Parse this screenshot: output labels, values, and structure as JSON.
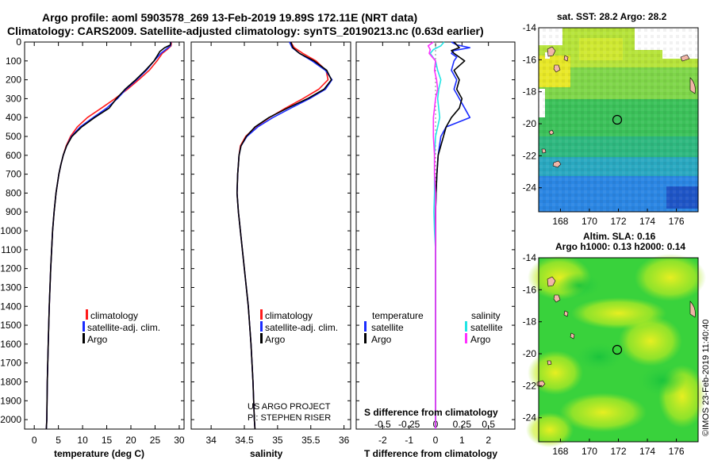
{
  "header": {
    "line1": "Argo profile: aoml 5903578_269 13-Feb-2019 19.89S 172.11E (NRT data)",
    "line2": "Climatology: CARS2009. Satellite-adjusted climatology: synTS_20190213.nc (0.63d earlier)"
  },
  "side_labels": {
    "sst": "sat. SST: 28.2 Argo: 28.2",
    "sla1": "Altim. SLA: 0.16",
    "sla2": "Argo h1000: 0.13 h2000: 0.14",
    "imos": "©IMOS 23-Feb-2019 11:40:40"
  },
  "depth_axis": {
    "ticks": [
      "0",
      "100",
      "200",
      "300",
      "400",
      "500",
      "600",
      "700",
      "800",
      "900",
      "1000",
      "1100",
      "1200",
      "1300",
      "1400",
      "1500",
      "1600",
      "1700",
      "1800",
      "1900",
      "2000"
    ],
    "range": [
      0,
      2050
    ]
  },
  "colors": {
    "climatology": "#ff1a1a",
    "satellite": "#1a2cff",
    "argo": "#000000",
    "satellite_s": "#22e5e5",
    "argo_s": "#ff30ff"
  },
  "chart_data": [
    {
      "type": "line",
      "title": "",
      "xlabel": "temperature (deg C)",
      "xlim": [
        -2,
        31
      ],
      "xticks": [
        {
          "v": 0,
          "label": "0"
        },
        {
          "v": 5,
          "label": "5"
        },
        {
          "v": 10,
          "label": "10"
        },
        {
          "v": 15,
          "label": "15"
        },
        {
          "v": 20,
          "label": "20"
        },
        {
          "v": 25,
          "label": "25"
        },
        {
          "v": 30,
          "label": "30"
        }
      ],
      "legend": [
        "climatology",
        "satellite-adj. clim.",
        "Argo"
      ],
      "series": [
        {
          "name": "climatology",
          "color": "#ff1a1a",
          "depth": [
            0,
            20,
            40,
            60,
            100,
            150,
            200,
            250,
            300,
            350,
            400,
            450,
            500,
            550,
            600,
            650,
            700,
            800,
            900,
            1000,
            1200,
            1400,
            1600,
            1800,
            2000,
            2050
          ],
          "values": [
            28.4,
            28.3,
            27.5,
            26.5,
            25.4,
            23.8,
            21.6,
            19.3,
            16.7,
            13.9,
            11.0,
            8.9,
            7.5,
            6.6,
            6.0,
            5.5,
            5.1,
            4.5,
            4.1,
            3.8,
            3.4,
            3.1,
            2.9,
            2.7,
            2.6,
            2.5
          ]
        },
        {
          "name": "satellite-adj. clim.",
          "color": "#1a2cff",
          "depth": [
            0,
            20,
            40,
            60,
            100,
            150,
            200,
            250,
            300,
            350,
            400,
            450,
            500,
            550,
            600,
            650,
            700,
            800,
            900,
            1000,
            1200,
            1400,
            1600,
            1800,
            2000,
            2050
          ],
          "values": [
            28.3,
            28.2,
            27.2,
            26.2,
            24.8,
            23.2,
            21.2,
            19.0,
            17.2,
            15.0,
            12.2,
            9.5,
            7.7,
            6.7,
            6.0,
            5.5,
            5.1,
            4.5,
            4.1,
            3.8,
            3.4,
            3.1,
            2.9,
            2.7,
            2.6,
            2.5
          ]
        },
        {
          "name": "Argo",
          "color": "#000000",
          "depth": [
            0,
            15,
            30,
            50,
            100,
            150,
            200,
            250,
            300,
            350,
            400,
            450,
            500,
            550,
            600,
            650,
            700,
            800,
            900,
            1000,
            1200,
            1400,
            1600,
            1800,
            2000,
            2050
          ],
          "values": [
            28.2,
            28.2,
            27.0,
            26.0,
            24.8,
            23.0,
            21.0,
            18.8,
            17.0,
            15.5,
            12.5,
            9.8,
            7.8,
            6.7,
            6.0,
            5.5,
            5.1,
            4.5,
            4.1,
            3.8,
            3.4,
            3.1,
            2.9,
            2.7,
            2.6,
            2.5
          ]
        }
      ]
    },
    {
      "type": "line",
      "xlabel": "salinity",
      "xlim": [
        33.7,
        36.1
      ],
      "xticks": [
        {
          "v": 34,
          "label": "34"
        },
        {
          "v": 34.5,
          "label": "34.5"
        },
        {
          "v": 35,
          "label": "35"
        },
        {
          "v": 35.5,
          "label": "35.5"
        },
        {
          "v": 36,
          "label": "36"
        }
      ],
      "legend": [
        "climatology",
        "satellite-adj. clim.",
        "Argo"
      ],
      "credit": [
        "US ARGO PROJECT",
        "PI: STEPHEN RISER"
      ],
      "series": [
        {
          "name": "climatology",
          "color": "#ff1a1a",
          "depth": [
            0,
            30,
            60,
            100,
            150,
            200,
            250,
            300,
            350,
            400,
            450,
            500,
            550,
            600,
            650,
            700,
            800,
            900,
            1000,
            1200,
            1400,
            1600,
            1800,
            2000,
            2050
          ],
          "values": [
            35.2,
            35.25,
            35.38,
            35.58,
            35.73,
            35.76,
            35.62,
            35.38,
            35.12,
            34.88,
            34.67,
            34.52,
            34.44,
            34.42,
            34.41,
            34.4,
            34.39,
            34.41,
            34.44,
            34.5,
            34.56,
            34.6,
            34.63,
            34.65,
            34.66
          ]
        },
        {
          "name": "satellite-adj. clim.",
          "color": "#1a2cff",
          "depth": [
            0,
            30,
            60,
            100,
            150,
            200,
            250,
            300,
            350,
            400,
            450,
            500,
            550,
            600,
            650,
            700,
            800,
            900,
            1000,
            1200,
            1400,
            1600,
            1800,
            2000,
            2050
          ],
          "values": [
            35.18,
            35.22,
            35.33,
            35.52,
            35.72,
            35.82,
            35.72,
            35.48,
            35.2,
            34.93,
            34.7,
            34.54,
            34.45,
            34.42,
            34.41,
            34.4,
            34.39,
            34.41,
            34.44,
            34.5,
            34.56,
            34.6,
            34.63,
            34.65,
            34.66
          ]
        },
        {
          "name": "Argo",
          "color": "#000000",
          "depth": [
            0,
            30,
            60,
            100,
            150,
            200,
            250,
            300,
            350,
            400,
            450,
            500,
            550,
            600,
            650,
            700,
            800,
            900,
            1000,
            1200,
            1400,
            1600,
            1800,
            2000,
            2050
          ],
          "values": [
            35.2,
            35.23,
            35.33,
            35.55,
            35.74,
            35.81,
            35.7,
            35.45,
            35.15,
            34.87,
            34.66,
            34.53,
            34.45,
            34.42,
            34.41,
            34.4,
            34.39,
            34.41,
            34.44,
            34.5,
            34.56,
            34.6,
            34.63,
            34.65,
            34.66
          ]
        }
      ]
    },
    {
      "type": "line",
      "xlabel": "T difference from climatology",
      "xlim": [
        -3,
        3
      ],
      "xticks": [
        {
          "v": -2,
          "label": "-2"
        },
        {
          "v": -1,
          "label": "-1"
        },
        {
          "v": 0,
          "label": "0"
        },
        {
          "v": 1,
          "label": "1"
        },
        {
          "v": 2,
          "label": "2"
        }
      ],
      "s_axis_label": "S difference from climatology",
      "s_ticks": [
        {
          "v": -0.5,
          "label": "-0.5"
        },
        {
          "v": -0.25,
          "label": "-0.25"
        },
        {
          "v": 0,
          "label": "0"
        },
        {
          "v": 0.25,
          "label": "0.25"
        },
        {
          "v": 0.5,
          "label": "0.5"
        }
      ],
      "s_scale": 4,
      "legend_temperature": {
        "header": "temperature",
        "items": [
          "satellite",
          "Argo"
        ]
      },
      "legend_salinity": {
        "header": "salinity",
        "items": [
          "satellite",
          "Argo"
        ]
      },
      "series": [
        {
          "name": "temperature satellite",
          "kind": "T",
          "color": "#1a2cff",
          "depth": [
            0,
            15,
            30,
            45,
            60,
            80,
            100,
            150,
            200,
            250,
            300,
            350,
            400,
            450,
            500,
            600,
            700,
            800,
            900,
            1000,
            1200,
            1400,
            1600,
            1800,
            2000,
            2050
          ],
          "values": [
            0.6,
            0.8,
            1.3,
            0.7,
            0.6,
            0.8,
            0.7,
            0.6,
            0.8,
            0.7,
            0.9,
            1.1,
            1.3,
            0.4,
            0.2,
            0.1,
            0.05,
            0.02,
            0.0,
            0.0,
            0.0,
            0.0,
            0.0,
            0.0,
            0.0,
            0.0
          ]
        },
        {
          "name": "temperature Argo",
          "kind": "T",
          "color": "#000000",
          "depth": [
            0,
            15,
            30,
            45,
            60,
            80,
            100,
            150,
            200,
            250,
            300,
            350,
            400,
            450,
            500,
            600,
            700,
            800,
            900,
            1000,
            1200,
            1400,
            1600,
            1800,
            2000,
            2050
          ],
          "values": [
            0.7,
            0.8,
            0.9,
            0.6,
            0.7,
            0.9,
            1.1,
            0.7,
            0.9,
            0.8,
            1.0,
            0.9,
            0.6,
            0.4,
            0.3,
            0.1,
            0.05,
            0.02,
            0.0,
            0.0,
            0.0,
            0.0,
            0.0,
            0.0,
            0.0,
            0.0
          ]
        },
        {
          "name": "salinity satellite",
          "kind": "S",
          "color": "#22e5e5",
          "depth": [
            0,
            20,
            40,
            60,
            100,
            150,
            200,
            250,
            300,
            350,
            400,
            450,
            500,
            600,
            700,
            800,
            900,
            1000,
            1100,
            1200,
            1400,
            1600,
            1800,
            2000,
            2050
          ],
          "values": [
            0.08,
            0.05,
            -0.02,
            -0.05,
            0.0,
            0.02,
            0.05,
            0.03,
            0.02,
            0.03,
            0.04,
            0.02,
            0.0,
            -0.01,
            -0.01,
            -0.01,
            -0.015,
            -0.01,
            0.0,
            0.0,
            0.0,
            0.0,
            0.0,
            0.0,
            0.0
          ]
        },
        {
          "name": "salinity Argo",
          "kind": "S",
          "color": "#ff30ff",
          "depth": [
            0,
            20,
            40,
            60,
            100,
            150,
            200,
            250,
            300,
            350,
            400,
            450,
            500,
            600,
            700,
            800,
            900,
            1000,
            1100,
            1200,
            1400,
            1600,
            1800,
            2000,
            2050
          ],
          "values": [
            -0.02,
            -0.07,
            -0.05,
            -0.06,
            0.0,
            -0.01,
            0.01,
            0.02,
            0.0,
            -0.01,
            -0.02,
            -0.02,
            -0.02,
            -0.01,
            -0.01,
            0.0,
            0.0,
            0.0,
            0.0,
            0.0,
            0.0,
            0.0,
            0.0,
            0.0,
            0.0
          ]
        }
      ]
    },
    {
      "type": "heatmap",
      "title": "sat. SST: 28.2 Argo: 28.2",
      "xticks": [
        "168",
        "170",
        "172",
        "174",
        "176"
      ],
      "yticks": [
        "-14",
        "-16",
        "-18",
        "-20",
        "-22",
        "-24"
      ],
      "xlim": [
        166.5,
        177.5
      ],
      "ylim": [
        -25.5,
        -14
      ],
      "marker": {
        "lon": 172.11,
        "lat": -19.89
      }
    },
    {
      "type": "heatmap",
      "title": "Altim. SLA: 0.16",
      "xticks": [
        "168",
        "170",
        "172",
        "174",
        "176"
      ],
      "yticks": [
        "-14",
        "-16",
        "-18",
        "-20",
        "-22",
        "-24"
      ],
      "xlim": [
        166.5,
        177.5
      ],
      "ylim": [
        -25.5,
        -14
      ],
      "marker": {
        "lon": 172.11,
        "lat": -19.89
      }
    }
  ]
}
